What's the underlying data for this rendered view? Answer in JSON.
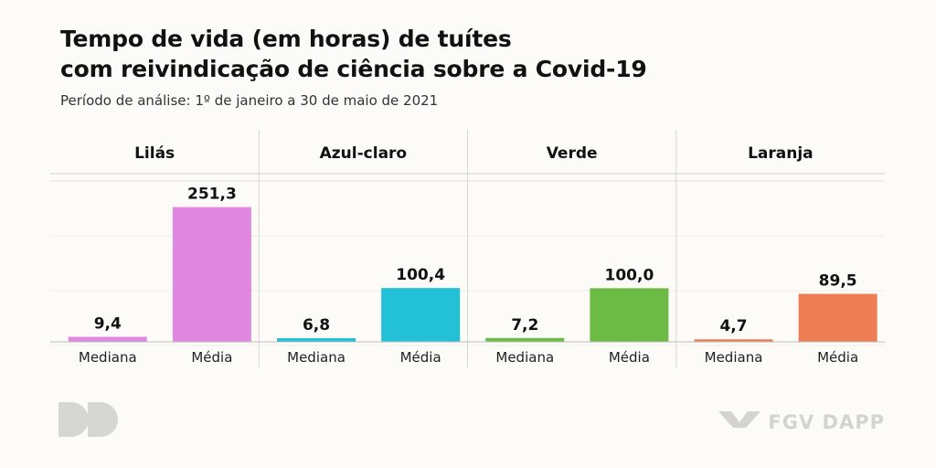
{
  "header": {
    "title_line1": "Tempo de vida (em horas) de tuítes",
    "title_line2": "com reivindicação de ciência sobre a Covid-19",
    "subtitle": "Período de análise: 1º de janeiro a 30 de maio de 2021"
  },
  "branding": {
    "left_logo_icon": "dd-logo-icon",
    "right_logo_icon": "fgv-logo-icon",
    "right_logo_text": "FGV DAPP"
  },
  "chart_data": {
    "type": "bar",
    "categories": [
      "Mediana",
      "Média"
    ],
    "groups": [
      {
        "name": "Lilás",
        "color": "#e087e2",
        "values": [
          9.4,
          251.3
        ],
        "labels": [
          "9,4",
          "251,3"
        ]
      },
      {
        "name": "Azul-claro",
        "color": "#22c1d8",
        "values": [
          6.8,
          100.4
        ],
        "labels": [
          "6,8",
          "100,4"
        ]
      },
      {
        "name": "Verde",
        "color": "#6cbb45",
        "values": [
          7.2,
          100.0
        ],
        "labels": [
          "7,2",
          "100,0"
        ]
      },
      {
        "name": "Laranja",
        "color": "#ef7d54",
        "values": [
          4.7,
          89.5
        ],
        "labels": [
          "4,7",
          "89,5"
        ]
      }
    ],
    "ylim": [
      0,
      300
    ],
    "grid": true,
    "title": "",
    "xlabel": "",
    "ylabel": ""
  }
}
